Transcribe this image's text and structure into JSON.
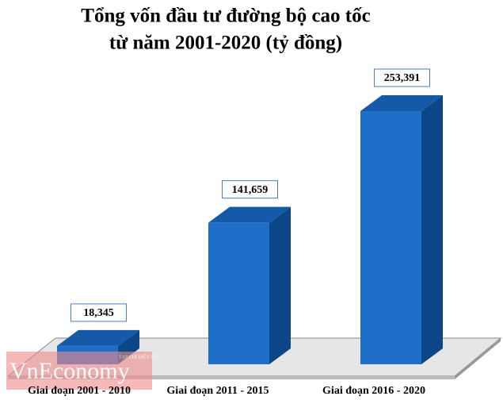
{
  "chart_data": {
    "type": "bar3d",
    "title": [
      "Tổng vốn đầu tư đường bộ cao tốc",
      "từ năm 2001-2020 (tỷ đồng)"
    ],
    "categories": [
      "Giai đoạn 2001 - 2010",
      "Giai đoạn 2011 - 2015",
      "Giai đoạn 2016 - 2020"
    ],
    "values": [
      18345,
      141659,
      253391
    ],
    "value_labels": [
      "18,345",
      "141,659",
      "253,391"
    ],
    "color": "#1f6fc8"
  },
  "watermark": {
    "brand": "VnEconomy",
    "tagline": "TẠP CHÍ ĐIỆN TỬ"
  }
}
